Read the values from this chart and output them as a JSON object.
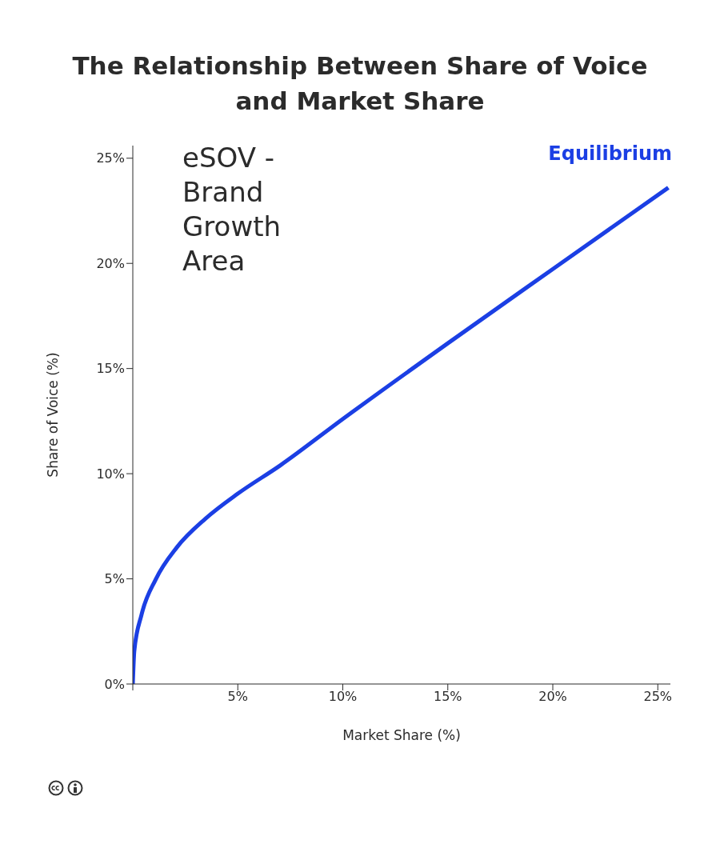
{
  "chart_data": {
    "type": "line",
    "title": "The Relationship Between Share of Voice and Market Share",
    "xlabel": "Market Share (%)",
    "ylabel": "Share of Voice (%)",
    "annotations": [
      "eSOV - Brand Growth Area"
    ],
    "x": [
      0,
      0.07,
      0.41,
      1.09,
      2.1,
      3.46,
      5.0,
      7.03,
      10.0,
      15.0,
      20.1,
      25.5
    ],
    "series": [
      {
        "name": "Equilibrium",
        "color": "#1b3fe4",
        "values": [
          0,
          1.56,
          3.27,
          4.97,
          6.5,
          7.86,
          9.05,
          10.4,
          12.6,
          16.2,
          19.8,
          23.6
        ]
      }
    ],
    "xlim": [
      0,
      25.6
    ],
    "xticks": [
      {
        "value": 0,
        "label": null
      },
      {
        "value": 5,
        "label": "5%"
      },
      {
        "value": 10,
        "label": "10%"
      },
      {
        "value": 15,
        "label": "15%"
      },
      {
        "value": 20,
        "label": "20%"
      },
      {
        "value": 25,
        "label": "25%"
      }
    ],
    "ylim": [
      0,
      25.6
    ],
    "yticks": [
      {
        "value": 0,
        "label": "0%"
      },
      {
        "value": 5,
        "label": "5%"
      },
      {
        "value": 10,
        "label": "10%"
      },
      {
        "value": 15,
        "label": "15%"
      },
      {
        "value": 20,
        "label": "20%"
      },
      {
        "value": 25,
        "label": "25%"
      }
    ],
    "grid": false,
    "legend": false,
    "marker": "none",
    "line_style": "solid"
  }
}
